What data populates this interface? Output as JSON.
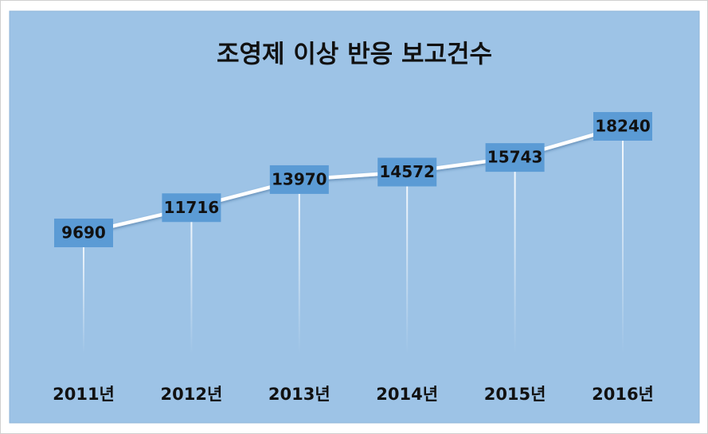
{
  "chart_data": {
    "type": "line",
    "title": "조영제 이상 반응 보고건수",
    "categories": [
      "2011년",
      "2012년",
      "2013년",
      "2014년",
      "2015년",
      "2016년"
    ],
    "values": [
      9690,
      11716,
      13970,
      14572,
      15743,
      18240
    ],
    "color": "#ffffff",
    "label_color": "#5b9bd5",
    "ylim": [
      0,
      22000
    ],
    "grid": false
  }
}
